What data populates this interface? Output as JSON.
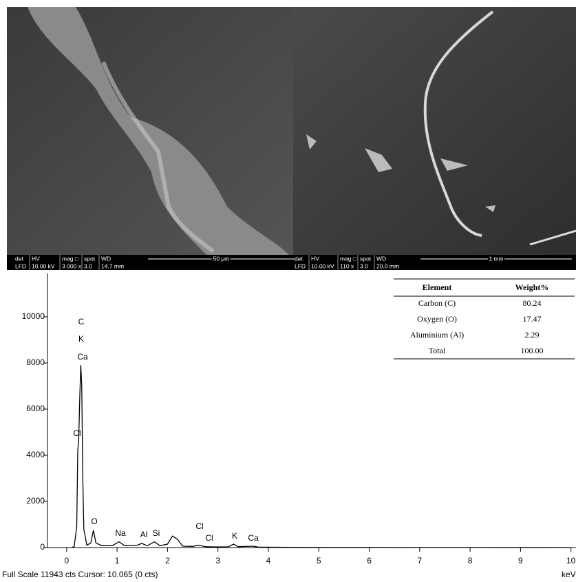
{
  "images": [
    {
      "info": {
        "labels": [
          "det",
          "HV",
          "mag □",
          "spot",
          "WD"
        ],
        "values": [
          "LFD",
          "10.00 kV",
          "3 000 x",
          "3.0",
          "14.7 mm"
        ],
        "scale": "50 μm"
      }
    },
    {
      "info": {
        "labels": [
          "det",
          "HV",
          "mag □",
          "spot",
          "WD"
        ],
        "values": [
          "LFD",
          "10.00 kV",
          "110 x",
          "3.0",
          "20.0 mm"
        ],
        "scale": "1 mm"
      }
    }
  ],
  "table": {
    "header": [
      "Element",
      "Weight%"
    ],
    "rows": [
      [
        "Carbon (C)",
        "80.24"
      ],
      [
        "Oxygen (O)",
        "17.47"
      ],
      [
        "Aluminium (Al)",
        "2.29"
      ],
      [
        "Total",
        "100.00"
      ]
    ]
  },
  "chart_data": {
    "type": "line",
    "color": "#000000",
    "x": [
      0.1,
      0.15,
      0.2,
      0.22,
      0.24,
      0.26,
      0.28,
      0.3,
      0.32,
      0.34,
      0.4,
      0.48,
      0.53,
      0.58,
      0.7,
      0.9,
      1.04,
      1.15,
      1.4,
      1.49,
      1.6,
      1.74,
      1.85,
      2.0,
      2.1,
      2.2,
      2.3,
      2.5,
      2.62,
      2.75,
      2.9,
      3.2,
      3.31,
      3.4,
      3.69,
      3.8,
      4.5,
      6,
      8,
      10
    ],
    "values": [
      0,
      50,
      900,
      4200,
      4700,
      6500,
      7900,
      7000,
      3000,
      800,
      100,
      200,
      750,
      200,
      80,
      80,
      250,
      80,
      100,
      180,
      80,
      250,
      80,
      150,
      500,
      350,
      60,
      50,
      100,
      40,
      30,
      30,
      150,
      40,
      60,
      20,
      10,
      5,
      3,
      0
    ],
    "xlim": [
      -0.38,
      10.1
    ],
    "ylim": [
      0,
      11880
    ],
    "xticks": [
      0,
      1,
      2,
      3,
      4,
      5,
      6,
      7,
      8,
      9,
      10
    ],
    "yticks": [
      0,
      2000,
      4000,
      6000,
      8000,
      10000
    ],
    "xlabel": "keV",
    "footer": "Full Scale 11943 cts Cursor: 10.065  (0 cts)",
    "annotations": [
      "C",
      "K",
      "Ca",
      "Cl",
      "O",
      "Na",
      "Al",
      "Si",
      "Cl",
      "Cl",
      "K",
      "Ca"
    ]
  }
}
